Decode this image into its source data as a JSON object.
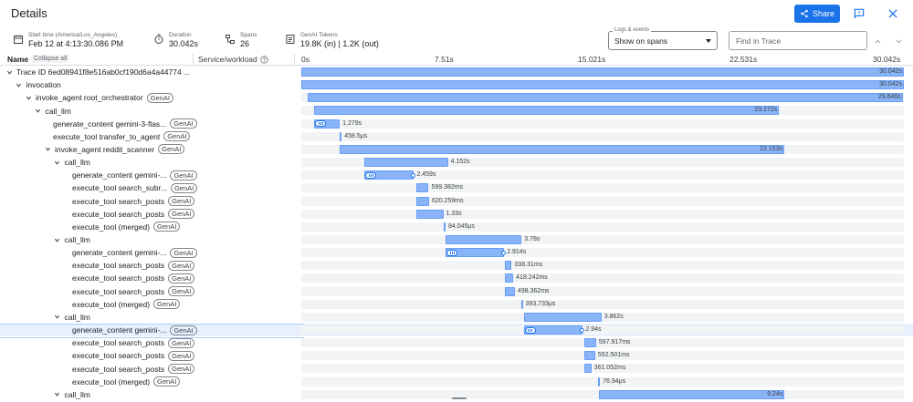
{
  "header": {
    "title": "Details",
    "share_label": "Share"
  },
  "info": {
    "start_time_label": "Start time (America/Los_Angeles)",
    "start_time_value": "Feb 12 at 4:13:30.086 PM",
    "duration_label": "Duration",
    "duration_value": "30.042s",
    "spans_label": "Spans",
    "spans_value": "26",
    "tokens_label": "GenAI Tokens",
    "tokens_value": "19.8K (in) | 1.2K (out)"
  },
  "logs": {
    "label": "Logs & events",
    "value": "Show on spans"
  },
  "find": {
    "placeholder": "Find in Trace"
  },
  "table": {
    "name_header": "Name",
    "collapse_label": "Collapse all",
    "service_header": "Service/workload",
    "ticks": [
      "0s",
      "7.51s",
      "15.021s",
      "22.531s",
      "30.042s"
    ]
  },
  "colors": {
    "accent": "#1a73e8",
    "bar_fill": "#8ab4f8",
    "lane": "#f1f3f4",
    "selected_row": "#e8f0fe"
  },
  "total_duration_s": 30.042,
  "spans": [
    {
      "name": "Trace ID 6ed08941f8e516ab0cf190d6a4a44774 ...",
      "genai": false,
      "depth": 0,
      "caret": true,
      "start": 0.0,
      "dur": 30.042,
      "dur_label": "30.042s",
      "label_inside": true
    },
    {
      "name": "invocation",
      "genai": false,
      "depth": 1,
      "caret": true,
      "start": 0.0,
      "dur": 30.042,
      "dur_label": "30.042s",
      "label_inside": true
    },
    {
      "name": "invoke_agent root_orchestrator",
      "genai": true,
      "depth": 2,
      "caret": true,
      "start": 0.34,
      "dur": 29.646,
      "dur_label": "29.646s",
      "label_inside": true
    },
    {
      "name": "call_llm",
      "genai": false,
      "depth": 3,
      "caret": true,
      "start": 0.64,
      "dur": 23.172,
      "dur_label": "23.172s",
      "label_inside": true
    },
    {
      "name": "generate_content gemini-3-flas...",
      "genai": true,
      "depth": 4,
      "caret": false,
      "start": 0.64,
      "dur": 1.279,
      "dur_label": "1.279s",
      "label_inside": false,
      "spark": true
    },
    {
      "name": "execute_tool transfer_to_agent",
      "genai": true,
      "depth": 4,
      "caret": false,
      "start": 1.92,
      "dur": 0.0005,
      "dur_label": "458.5μs",
      "label_inside": false
    },
    {
      "name": "invoke_agent reddit_scanner",
      "genai": true,
      "depth": 4,
      "caret": true,
      "start": 1.93,
      "dur": 22.153,
      "dur_label": "22.153s",
      "label_inside": true
    },
    {
      "name": "call_llm",
      "genai": false,
      "depth": 5,
      "caret": true,
      "start": 3.16,
      "dur": 4.152,
      "dur_label": "4.152s",
      "label_inside": false
    },
    {
      "name": "generate_content gemini-...",
      "genai": true,
      "depth": 6,
      "caret": false,
      "start": 3.16,
      "dur": 2.459,
      "dur_label": "2.459s",
      "label_inside": false,
      "spark": true,
      "end_dot": true
    },
    {
      "name": "execute_tool search_subr...",
      "genai": true,
      "depth": 6,
      "caret": false,
      "start": 5.75,
      "dur": 0.599,
      "dur_label": "599.382ms",
      "label_inside": false
    },
    {
      "name": "execute_tool search_posts",
      "genai": true,
      "depth": 6,
      "caret": false,
      "start": 5.75,
      "dur": 0.62,
      "dur_label": "620.259ms",
      "label_inside": false
    },
    {
      "name": "execute_tool search_posts",
      "genai": true,
      "depth": 6,
      "caret": false,
      "start": 5.75,
      "dur": 1.33,
      "dur_label": "1.33s",
      "label_inside": false
    },
    {
      "name": "execute_tool (merged)",
      "genai": true,
      "depth": 6,
      "caret": false,
      "start": 7.1,
      "dur": 8e-05,
      "dur_label": "84.045μs",
      "label_inside": false
    },
    {
      "name": "call_llm",
      "genai": false,
      "depth": 5,
      "caret": true,
      "start": 7.2,
      "dur": 3.78,
      "dur_label": "3.78s",
      "label_inside": false
    },
    {
      "name": "generate_content gemini-...",
      "genai": true,
      "depth": 6,
      "caret": false,
      "start": 7.2,
      "dur": 2.914,
      "dur_label": "2.914s",
      "label_inside": false,
      "spark": true,
      "end_dot": true
    },
    {
      "name": "execute_tool search_posts",
      "genai": true,
      "depth": 6,
      "caret": false,
      "start": 10.15,
      "dur": 0.338,
      "dur_label": "338.31ms",
      "label_inside": false
    },
    {
      "name": "execute_tool search_posts",
      "genai": true,
      "depth": 6,
      "caret": false,
      "start": 10.15,
      "dur": 0.418,
      "dur_label": "418.242ms",
      "label_inside": false
    },
    {
      "name": "execute_tool search_posts",
      "genai": true,
      "depth": 6,
      "caret": false,
      "start": 10.15,
      "dur": 0.498,
      "dur_label": "498.362ms",
      "label_inside": false
    },
    {
      "name": "execute_tool (merged)",
      "genai": true,
      "depth": 6,
      "caret": false,
      "start": 10.95,
      "dur": 0.0004,
      "dur_label": "393.733μs",
      "label_inside": false
    },
    {
      "name": "call_llm",
      "genai": false,
      "depth": 5,
      "caret": true,
      "start": 11.1,
      "dur": 3.862,
      "dur_label": "3.862s",
      "label_inside": false
    },
    {
      "name": "generate_content gemini-...",
      "genai": true,
      "depth": 6,
      "caret": false,
      "start": 11.1,
      "dur": 2.94,
      "dur_label": "2.94s",
      "label_inside": false,
      "spark": true,
      "end_dot": true,
      "selected": true
    },
    {
      "name": "execute_tool search_posts",
      "genai": true,
      "depth": 6,
      "caret": false,
      "start": 14.1,
      "dur": 0.598,
      "dur_label": "597.917ms",
      "label_inside": false
    },
    {
      "name": "execute_tool search_posts",
      "genai": true,
      "depth": 6,
      "caret": false,
      "start": 14.1,
      "dur": 0.553,
      "dur_label": "552.501ms",
      "label_inside": false
    },
    {
      "name": "execute_tool search_posts",
      "genai": true,
      "depth": 6,
      "caret": false,
      "start": 14.1,
      "dur": 0.361,
      "dur_label": "361.052ms",
      "label_inside": false
    },
    {
      "name": "execute_tool (merged)",
      "genai": true,
      "depth": 6,
      "caret": false,
      "start": 14.8,
      "dur": 8e-05,
      "dur_label": "76.94μs",
      "label_inside": false
    },
    {
      "name": "call_llm",
      "genai": false,
      "depth": 5,
      "caret": true,
      "start": 14.85,
      "dur": 9.24,
      "dur_label": "9.24s",
      "label_inside": true
    }
  ]
}
